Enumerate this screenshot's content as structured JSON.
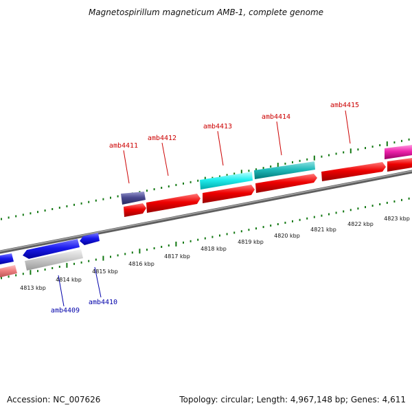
{
  "title": "Magnetospirillum magneticum AMB-1, complete genome",
  "footer": {
    "accession": "Accession: NC_007626",
    "summary": "Topology: circular; Length: 4,967,148 bp; Genes: 4,611"
  },
  "colors": {
    "forward_label": "#cc0000",
    "reverse_label": "#0000aa",
    "tick": "#117711",
    "backbone": "#7a7a7a"
  },
  "scale_labels": [
    "4813 kbp",
    "4814 kbp",
    "4815 kbp",
    "4816 kbp",
    "4817 kbp",
    "4818 kbp",
    "4819 kbp",
    "4820 kbp",
    "4821 kbp",
    "4822 kbp",
    "4823 kbp"
  ],
  "gene_labels": {
    "forward": [
      "amb4411",
      "amb4412",
      "amb4413",
      "amb4414",
      "amb4415"
    ],
    "reverse": [
      "amb4409",
      "amb4410"
    ]
  }
}
